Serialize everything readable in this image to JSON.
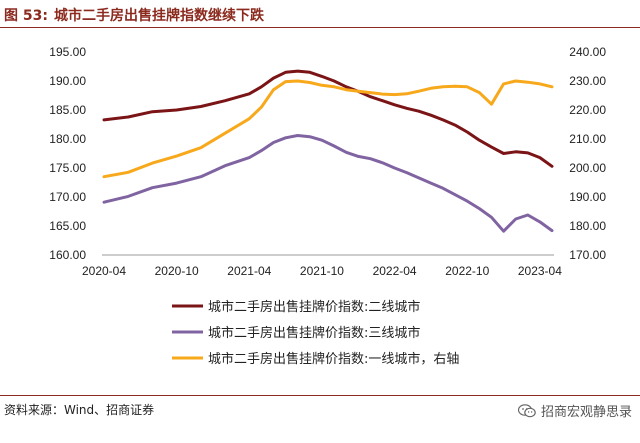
{
  "figure": {
    "number": "图 53:",
    "title": "城市二手房出售挂牌指数继续下跌",
    "source": "资料来源：Wind、招商证券",
    "brand": "招商宏观静思录"
  },
  "colors": {
    "tier2": "#7B1416",
    "tier3": "#8064A2",
    "tier1": "#F7A81B",
    "header": "#8B2A1E"
  },
  "icons": {
    "brand": "wechat-icon"
  },
  "chart_data": {
    "type": "line",
    "x_ticks": [
      "2020-04",
      "2020-10",
      "2021-04",
      "2021-10",
      "2022-04",
      "2022-10",
      "2023-04"
    ],
    "x_range": [
      "2020-04",
      "2023-05"
    ],
    "y_left": {
      "min": 160,
      "max": 195,
      "step": 5,
      "ticks": [
        "160.00",
        "165.00",
        "170.00",
        "175.00",
        "180.00",
        "185.00",
        "190.00",
        "195.00"
      ]
    },
    "y_right": {
      "min": 170,
      "max": 240,
      "step": 10,
      "ticks": [
        "170.00",
        "180.00",
        "190.00",
        "200.00",
        "210.00",
        "220.00",
        "230.00",
        "240.00"
      ]
    },
    "grid": false,
    "legend_position": "bottom",
    "series": [
      {
        "name": "城市二手房出售挂牌价指数:二线城市",
        "axis": "left",
        "color": "#7B1416",
        "points": [
          [
            "2020-04",
            183.3
          ],
          [
            "2020-06",
            183.8
          ],
          [
            "2020-08",
            184.7
          ],
          [
            "2020-10",
            185.0
          ],
          [
            "2020-12",
            185.6
          ],
          [
            "2021-02",
            186.6
          ],
          [
            "2021-04",
            187.8
          ],
          [
            "2021-05",
            189.0
          ],
          [
            "2021-06",
            190.5
          ],
          [
            "2021-07",
            191.5
          ],
          [
            "2021-08",
            191.7
          ],
          [
            "2021-09",
            191.5
          ],
          [
            "2021-10",
            190.8
          ],
          [
            "2021-11",
            190.0
          ],
          [
            "2021-12",
            189.0
          ],
          [
            "2022-01",
            188.2
          ],
          [
            "2022-02",
            187.3
          ],
          [
            "2022-03",
            186.6
          ],
          [
            "2022-04",
            185.9
          ],
          [
            "2022-05",
            185.3
          ],
          [
            "2022-06",
            184.8
          ],
          [
            "2022-07",
            184.1
          ],
          [
            "2022-08",
            183.3
          ],
          [
            "2022-09",
            182.4
          ],
          [
            "2022-10",
            181.2
          ],
          [
            "2022-11",
            179.8
          ],
          [
            "2022-12",
            178.6
          ],
          [
            "2023-01",
            177.5
          ],
          [
            "2023-02",
            177.8
          ],
          [
            "2023-03",
            177.6
          ],
          [
            "2023-04",
            176.8
          ],
          [
            "2023-05",
            175.3
          ]
        ]
      },
      {
        "name": "城市二手房出售挂牌价指数:三线城市",
        "axis": "left",
        "color": "#8064A2",
        "points": [
          [
            "2020-04",
            169.1
          ],
          [
            "2020-06",
            170.1
          ],
          [
            "2020-08",
            171.6
          ],
          [
            "2020-10",
            172.4
          ],
          [
            "2020-12",
            173.5
          ],
          [
            "2021-02",
            175.4
          ],
          [
            "2021-04",
            176.8
          ],
          [
            "2021-05",
            178.0
          ],
          [
            "2021-06",
            179.4
          ],
          [
            "2021-07",
            180.2
          ],
          [
            "2021-08",
            180.6
          ],
          [
            "2021-09",
            180.4
          ],
          [
            "2021-10",
            179.8
          ],
          [
            "2021-11",
            178.8
          ],
          [
            "2021-12",
            177.7
          ],
          [
            "2022-01",
            177.0
          ],
          [
            "2022-02",
            176.6
          ],
          [
            "2022-03",
            175.9
          ],
          [
            "2022-04",
            175.0
          ],
          [
            "2022-05",
            174.2
          ],
          [
            "2022-06",
            173.3
          ],
          [
            "2022-07",
            172.4
          ],
          [
            "2022-08",
            171.5
          ],
          [
            "2022-09",
            170.4
          ],
          [
            "2022-10",
            169.3
          ],
          [
            "2022-11",
            168.0
          ],
          [
            "2022-12",
            166.5
          ],
          [
            "2023-01",
            164.1
          ],
          [
            "2023-02",
            166.2
          ],
          [
            "2023-03",
            166.9
          ],
          [
            "2023-04",
            165.7
          ],
          [
            "2023-05",
            164.2
          ]
        ]
      },
      {
        "name": "城市二手房出售挂牌价指数:一线城市，右轴",
        "axis": "right",
        "color": "#F7A81B",
        "points": [
          [
            "2020-04",
            197.0
          ],
          [
            "2020-06",
            198.5
          ],
          [
            "2020-08",
            201.7
          ],
          [
            "2020-10",
            204.1
          ],
          [
            "2020-12",
            207.0
          ],
          [
            "2021-02",
            212.0
          ],
          [
            "2021-04",
            217.0
          ],
          [
            "2021-05",
            221.0
          ],
          [
            "2021-06",
            227.0
          ],
          [
            "2021-07",
            229.8
          ],
          [
            "2021-08",
            230.0
          ],
          [
            "2021-09",
            229.5
          ],
          [
            "2021-10",
            228.5
          ],
          [
            "2021-11",
            228.0
          ],
          [
            "2021-12",
            227.0
          ],
          [
            "2022-01",
            226.5
          ],
          [
            "2022-02",
            226.0
          ],
          [
            "2022-03",
            225.5
          ],
          [
            "2022-04",
            225.3
          ],
          [
            "2022-05",
            225.6
          ],
          [
            "2022-06",
            226.5
          ],
          [
            "2022-07",
            227.5
          ],
          [
            "2022-08",
            228.0
          ],
          [
            "2022-09",
            228.2
          ],
          [
            "2022-10",
            228.0
          ],
          [
            "2022-11",
            226.0
          ],
          [
            "2022-12",
            222.0
          ],
          [
            "2023-01",
            229.0
          ],
          [
            "2023-02",
            230.0
          ],
          [
            "2023-03",
            229.6
          ],
          [
            "2023-04",
            229.0
          ],
          [
            "2023-05",
            228.0
          ]
        ]
      }
    ]
  }
}
